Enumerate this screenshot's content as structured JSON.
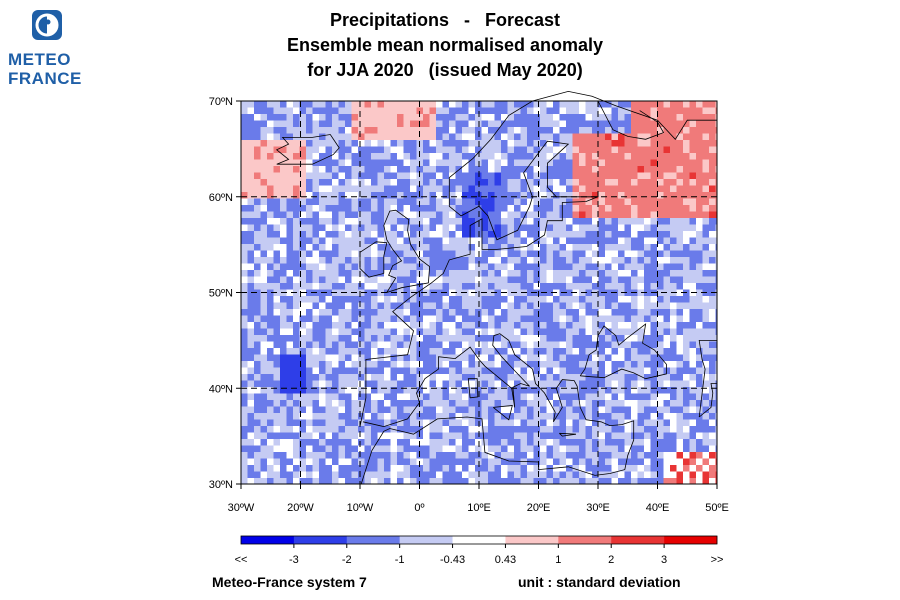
{
  "logo": {
    "line1": "METEO",
    "line2": "FRANCE",
    "icon": "meteo-france-badge-icon",
    "color": "#1f5fa7"
  },
  "title": {
    "line1": "Precipitations   -   Forecast",
    "line2": "Ensemble mean normalised anomaly",
    "line3": "for JJA 2020   (issued May 2020)"
  },
  "map": {
    "lon_range": [
      -30,
      50
    ],
    "lat_range": [
      30,
      70
    ],
    "lat_labels": [
      "30ºN",
      "40ºN",
      "50ºN",
      "60ºN",
      "70ºN"
    ],
    "lon_labels": [
      "30ºW",
      "20ºW",
      "10ºW",
      "0º",
      "10ºE",
      "20ºE",
      "30ºE",
      "40ºE",
      "50ºE"
    ],
    "grid": "dashed every 10 degrees"
  },
  "colorbar": {
    "labels": [
      "<<",
      "-3",
      "-2",
      "-1",
      "-0.43",
      "0.43",
      "1",
      "2",
      "3",
      ">>"
    ],
    "colors": [
      "#0000e8",
      "#2e3ee8",
      "#6a7bea",
      "#c5cbf3",
      "#ffffff",
      "#fbc8c8",
      "#f07a7a",
      "#e83434",
      "#e60000"
    ]
  },
  "footer": {
    "system": "Meteo-France system 7",
    "unit": "unit : standard deviation"
  }
}
